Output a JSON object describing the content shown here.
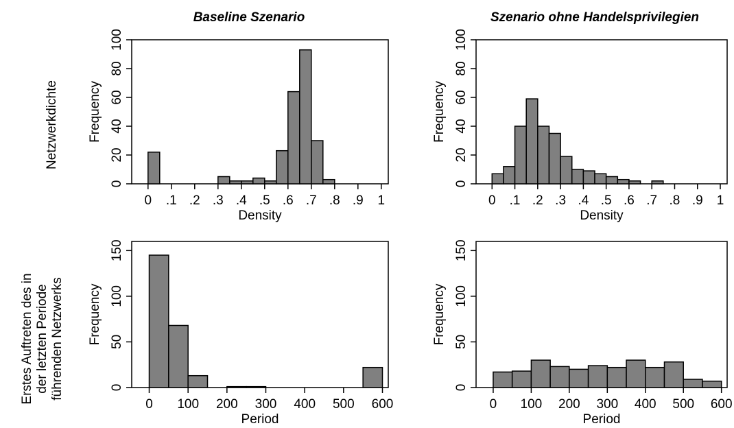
{
  "columns": [
    "Baseline Szenario",
    "Szenario ohne Handelsprivilegien"
  ],
  "rows": [
    "Netzwerkdichte",
    [
      "Erstes Auftreten des in",
      "der letzten Periode",
      "führenden Netzwerks"
    ]
  ],
  "chart_data": [
    {
      "type": "bar",
      "title": "Baseline Szenario",
      "xlabel": "Density",
      "ylabel": "Frequency",
      "xlim": [
        -0.07,
        1.03
      ],
      "ylim": [
        0,
        100
      ],
      "xticks": [
        0,
        0.1,
        0.2,
        0.3,
        0.4,
        0.5,
        0.6,
        0.7,
        0.8,
        0.9,
        1
      ],
      "xticklabels": [
        "0",
        ".1",
        ".2",
        ".3",
        ".4",
        ".5",
        ".6",
        ".7",
        ".8",
        ".9",
        "1"
      ],
      "yticks": [
        0,
        20,
        40,
        60,
        80,
        100
      ],
      "bin_width": 0.05,
      "bin_starts": [
        0,
        0.05,
        0.1,
        0.15,
        0.2,
        0.25,
        0.3,
        0.35,
        0.4,
        0.45,
        0.5,
        0.55,
        0.6,
        0.65,
        0.7,
        0.75,
        0.8,
        0.85,
        0.9,
        0.95
      ],
      "values": [
        22,
        0,
        0,
        0,
        0,
        0,
        5,
        2,
        2,
        4,
        2,
        23,
        64,
        93,
        30,
        3,
        0,
        0,
        0,
        0
      ]
    },
    {
      "type": "bar",
      "title": "Szenario ohne Handelsprivilegien",
      "xlabel": "Density",
      "ylabel": "Frequency",
      "xlim": [
        -0.07,
        1.03
      ],
      "ylim": [
        0,
        100
      ],
      "xticks": [
        0,
        0.1,
        0.2,
        0.3,
        0.4,
        0.5,
        0.6,
        0.7,
        0.8,
        0.9,
        1
      ],
      "xticklabels": [
        "0",
        ".1",
        ".2",
        ".3",
        ".4",
        ".5",
        ".6",
        ".7",
        ".8",
        ".9",
        "1"
      ],
      "yticks": [
        0,
        20,
        40,
        60,
        80,
        100
      ],
      "bin_width": 0.05,
      "bin_starts": [
        0,
        0.05,
        0.1,
        0.15,
        0.2,
        0.25,
        0.3,
        0.35,
        0.4,
        0.45,
        0.5,
        0.55,
        0.6,
        0.65,
        0.7,
        0.75,
        0.8,
        0.85,
        0.9,
        0.95
      ],
      "values": [
        7,
        12,
        40,
        59,
        40,
        35,
        19,
        10,
        9,
        7,
        5,
        3,
        2,
        0,
        2,
        0,
        0,
        0,
        0,
        0
      ]
    },
    {
      "type": "bar",
      "title": "",
      "xlabel": "Period",
      "ylabel": "Frequency",
      "xlim": [
        -45,
        615
      ],
      "ylim": [
        0,
        160
      ],
      "xticks": [
        0,
        100,
        200,
        300,
        400,
        500,
        600
      ],
      "xticklabels": [
        "0",
        "100",
        "200",
        "300",
        "400",
        "500",
        "600"
      ],
      "yticks": [
        0,
        50,
        100,
        150
      ],
      "bin_width": 50,
      "bin_starts": [
        0,
        50,
        100,
        150,
        200,
        250,
        300,
        350,
        400,
        450,
        500,
        550
      ],
      "values": [
        145,
        68,
        13,
        0,
        1,
        1,
        0,
        0,
        0,
        0,
        0,
        22
      ]
    },
    {
      "type": "bar",
      "title": "",
      "xlabel": "Period",
      "ylabel": "Frequency",
      "xlim": [
        -45,
        615
      ],
      "ylim": [
        0,
        160
      ],
      "xticks": [
        0,
        100,
        200,
        300,
        400,
        500,
        600
      ],
      "xticklabels": [
        "0",
        "100",
        "200",
        "300",
        "400",
        "500",
        "600"
      ],
      "yticks": [
        0,
        50,
        100,
        150
      ],
      "bin_width": 50,
      "bin_starts": [
        0,
        50,
        100,
        150,
        200,
        250,
        300,
        350,
        400,
        450,
        500,
        550
      ],
      "values": [
        17,
        18,
        30,
        23,
        20,
        24,
        22,
        30,
        22,
        28,
        9,
        7
      ]
    }
  ]
}
